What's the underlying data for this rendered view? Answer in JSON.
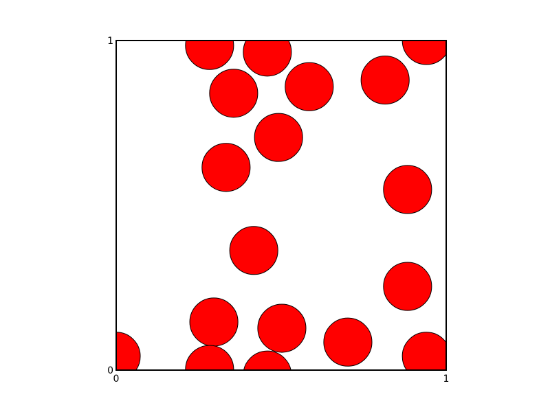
{
  "chart_data": {
    "type": "scatter",
    "title": "",
    "xlabel": "",
    "ylabel": "",
    "xlim": [
      0,
      1
    ],
    "ylim": [
      0,
      1
    ],
    "grid": false,
    "marker_radius": 0.073,
    "marker_fill": "#ff0000",
    "marker_edge": "#000000",
    "x_ticks": [
      {
        "value": 0,
        "label": "0"
      },
      {
        "value": 1,
        "label": "1"
      }
    ],
    "y_ticks": [
      {
        "value": 0,
        "label": "0"
      },
      {
        "value": 1,
        "label": "1"
      }
    ],
    "points": [
      {
        "x": 0.283,
        "y": 0.985
      },
      {
        "x": 0.458,
        "y": 0.965
      },
      {
        "x": 0.94,
        "y": 1.0
      },
      {
        "x": 0.356,
        "y": 0.84
      },
      {
        "x": 0.585,
        "y": 0.86
      },
      {
        "x": 0.815,
        "y": 0.88
      },
      {
        "x": 0.492,
        "y": 0.706
      },
      {
        "x": 0.333,
        "y": 0.615
      },
      {
        "x": 0.883,
        "y": 0.548
      },
      {
        "x": 0.417,
        "y": 0.363
      },
      {
        "x": 0.883,
        "y": 0.254
      },
      {
        "x": 0.296,
        "y": 0.146
      },
      {
        "x": 0.502,
        "y": 0.127
      },
      {
        "x": 0.702,
        "y": 0.085
      },
      {
        "x": 0.94,
        "y": 0.042
      },
      {
        "x": 0.0,
        "y": 0.042
      },
      {
        "x": 0.283,
        "y": 0.002
      },
      {
        "x": 0.458,
        "y": -0.015
      }
    ]
  }
}
